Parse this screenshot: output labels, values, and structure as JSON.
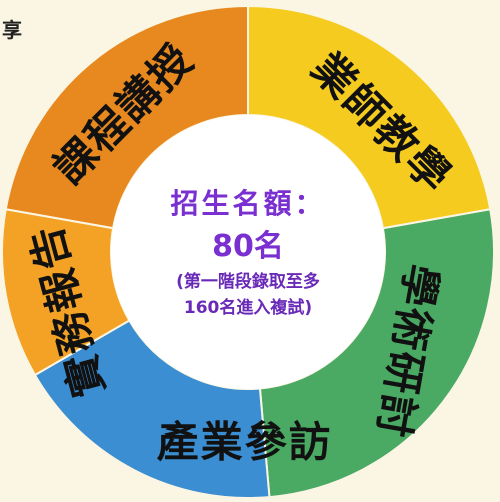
{
  "corner_text": "享",
  "segments": [
    {
      "id": "course-lectures",
      "label": "課程講授",
      "color": "#e8891f"
    },
    {
      "id": "industry-teachers",
      "label": "業師教學",
      "color": "#f5cb20"
    },
    {
      "id": "academic-seminars",
      "label": "學術研討",
      "color": "#4aa963"
    },
    {
      "id": "industry-visits",
      "label": "產業參訪",
      "color": "#3a8ed1"
    },
    {
      "id": "practice-reports",
      "label": "實務報告",
      "color": "#f3a225"
    }
  ],
  "center": {
    "title": "招生名額：",
    "count": "80名",
    "note_line1": "(第一階段錄取至多",
    "note_line2": "160名進入複試)",
    "title_color": "#7a2fd0",
    "note_color": "#6a2ab8"
  }
}
